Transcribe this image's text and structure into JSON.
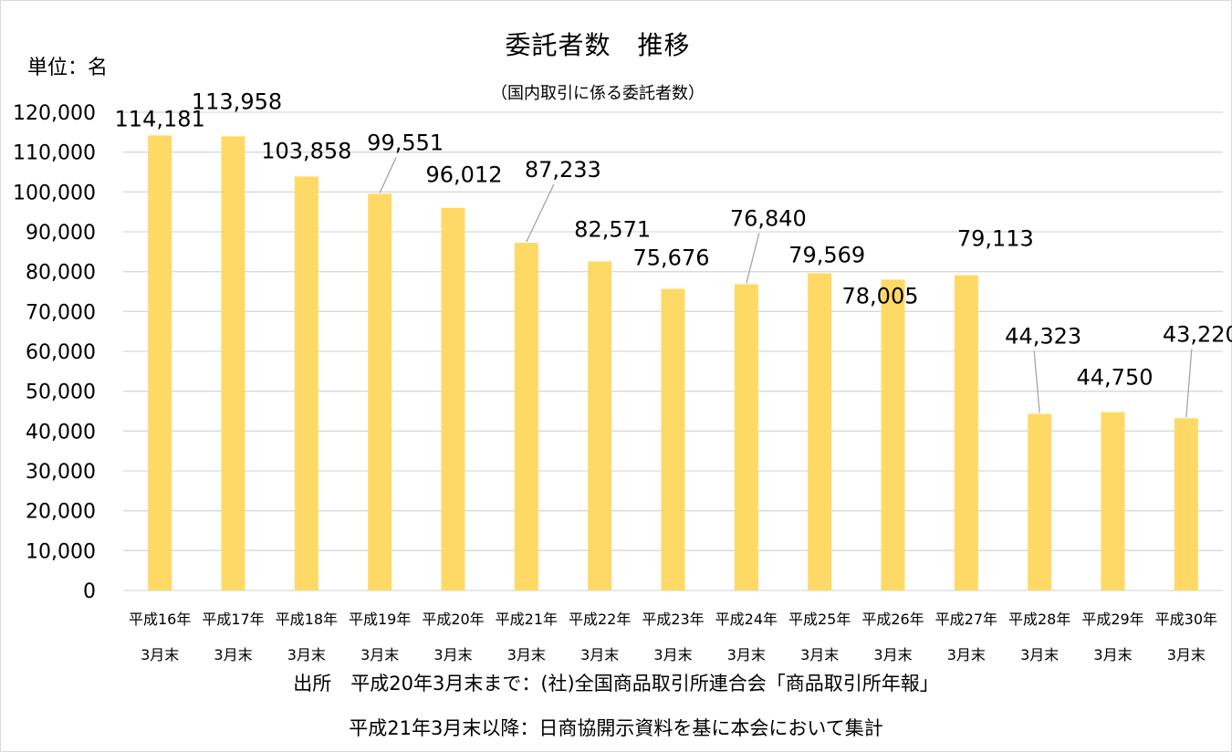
{
  "chart_data": {
    "type": "bar",
    "title": "委託者数　推移",
    "subtitle": "（国内取引に係る委託者数）",
    "unit_label": "単位：名",
    "categories": [
      {
        "line1": "平成16年",
        "line2": "3月末"
      },
      {
        "line1": "平成17年",
        "line2": "3月末"
      },
      {
        "line1": "平成18年",
        "line2": "3月末"
      },
      {
        "line1": "平成19年",
        "line2": "3月末"
      },
      {
        "line1": "平成20年",
        "line2": "3月末"
      },
      {
        "line1": "平成21年",
        "line2": "3月末"
      },
      {
        "line1": "平成22年",
        "line2": "3月末"
      },
      {
        "line1": "平成23年",
        "line2": "3月末"
      },
      {
        "line1": "平成24年",
        "line2": "3月末"
      },
      {
        "line1": "平成25年",
        "line2": "3月末"
      },
      {
        "line1": "平成26年",
        "line2": "3月末"
      },
      {
        "line1": "平成27年",
        "line2": "3月末"
      },
      {
        "line1": "平成28年",
        "line2": "3月末"
      },
      {
        "line1": "平成29年",
        "line2": "3月末"
      },
      {
        "line1": "平成30年",
        "line2": "3月末"
      }
    ],
    "values": [
      114181,
      113958,
      103858,
      99551,
      96012,
      87233,
      82571,
      75676,
      76840,
      79569,
      78005,
      79113,
      44323,
      44750,
      43220
    ],
    "value_labels": [
      "114,181",
      "113,958",
      "103,858",
      "99,551",
      "96,012",
      "87,233",
      "82,571",
      "75,676",
      "76,840",
      "79,569",
      "78,005",
      "79,113",
      "44,323",
      "44,750",
      "43,220"
    ],
    "ylim": [
      0,
      120000
    ],
    "y_ticks": [
      {
        "value": 0,
        "label": "0"
      },
      {
        "value": 10000,
        "label": "10,000"
      },
      {
        "value": 20000,
        "label": "20,000"
      },
      {
        "value": 30000,
        "label": "30,000"
      },
      {
        "value": 40000,
        "label": "40,000"
      },
      {
        "value": 50000,
        "label": "50,000"
      },
      {
        "value": 60000,
        "label": "60,000"
      },
      {
        "value": 70000,
        "label": "70,000"
      },
      {
        "value": 80000,
        "label": "80,000"
      },
      {
        "value": 90000,
        "label": "90,000"
      },
      {
        "value": 100000,
        "label": "100,000"
      },
      {
        "value": 110000,
        "label": "110,000"
      },
      {
        "value": 120000,
        "label": "120,000"
      }
    ],
    "grid": true,
    "legend": "none",
    "bar_color": "#ffd966",
    "grid_color": "#d9d9d9",
    "source_lines": [
      "出所　平成20年3月末まで：(社)全国商品取引所連合会「商品取引所年報」",
      "平成21年3月末以降：日商協開示資料を基に本会において集計"
    ]
  }
}
